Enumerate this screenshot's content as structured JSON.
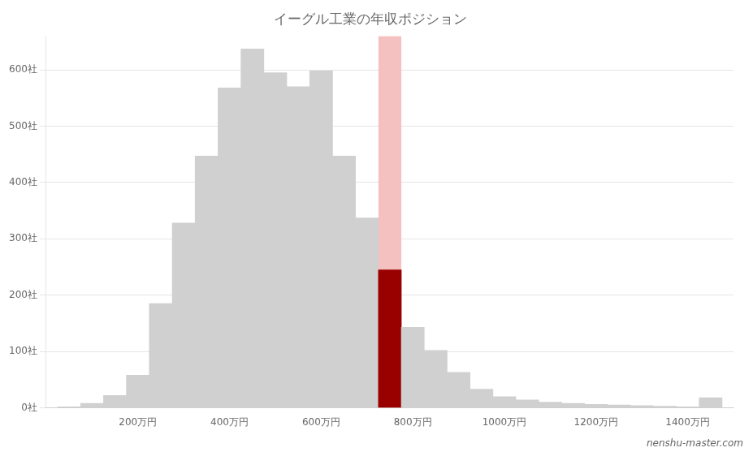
{
  "chart_data": {
    "type": "histogram",
    "title": "イーグル工業の年収ポジション",
    "bins": [
      25,
      75,
      125,
      175,
      225,
      275,
      325,
      375,
      425,
      475,
      525,
      575,
      625,
      675,
      725,
      775,
      825,
      875,
      925,
      975,
      1025,
      1075,
      1125,
      1175,
      1225,
      1275,
      1325,
      1375,
      1425,
      1475
    ],
    "values": [
      2,
      8,
      22,
      58,
      185,
      328,
      447,
      568,
      637,
      595,
      570,
      598,
      447,
      337,
      245,
      143,
      102,
      63,
      33,
      20,
      14,
      10,
      8,
      6,
      5,
      4,
      3,
      2,
      18
    ],
    "colors": [
      "#d0d0d0",
      "#d0d0d0",
      "#d0d0d0",
      "#d0d0d0",
      "#d0d0d0",
      "#d0d0d0",
      "#d0d0d0",
      "#d0d0d0",
      "#d0d0d0",
      "#d0d0d0",
      "#d0d0d0",
      "#d0d0d0",
      "#d0d0d0",
      "#d0d0d0",
      "#990000",
      "#d0d0d0",
      "#d0d0d0",
      "#d0d0d0",
      "#d0d0d0",
      "#d0d0d0",
      "#d0d0d0",
      "#d0d0d0",
      "#d0d0d0",
      "#d0d0d0",
      "#d0d0d0",
      "#d0d0d0",
      "#d0d0d0",
      "#d0d0d0",
      "#d0d0d0"
    ],
    "highlight": {
      "x": [
        725,
        775
      ],
      "y": [
        0,
        660
      ],
      "color": "#f5c0c0"
    },
    "xlim": [
      0,
      1500
    ],
    "xticks": [
      {
        "value": 200,
        "label": "200万円"
      },
      {
        "value": 400,
        "label": "400万円"
      },
      {
        "value": 600,
        "label": "600万円"
      },
      {
        "value": 800,
        "label": "800万円"
      },
      {
        "value": 1000,
        "label": "1000万円"
      },
      {
        "value": 1200,
        "label": "1200万円"
      },
      {
        "value": 1400,
        "label": "1400万円"
      }
    ],
    "ylim": [
      0,
      660
    ],
    "yticks": [
      {
        "value": 0,
        "label": "0社"
      },
      {
        "value": 100,
        "label": "100社"
      },
      {
        "value": 200,
        "label": "200社"
      },
      {
        "value": 300,
        "label": "300社"
      },
      {
        "value": 400,
        "label": "400社"
      },
      {
        "value": 500,
        "label": "500社"
      },
      {
        "value": 600,
        "label": "600社"
      }
    ],
    "grid": "y",
    "annotations": [
      {
        "text": "nenshu-master.com"
      }
    ]
  }
}
